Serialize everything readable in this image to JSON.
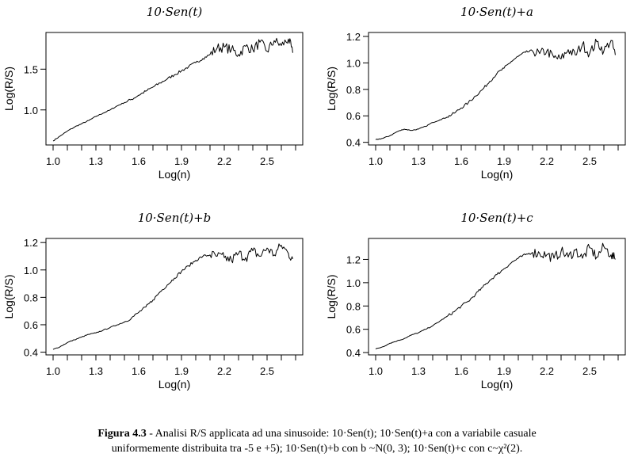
{
  "chart_data": [
    {
      "type": "line",
      "title": "10·Sen(t)",
      "xlabel": "Log(n)",
      "ylabel": "Log(R/S)",
      "xlim": [
        0.95,
        2.75
      ],
      "ylim": [
        0.57,
        1.95
      ],
      "xticks": [
        1.0,
        1.1,
        1.2,
        1.3,
        1.4,
        1.5,
        1.6,
        1.7,
        1.8,
        1.9,
        2.0,
        2.1,
        2.2,
        2.3,
        2.4,
        2.5,
        2.6,
        2.7
      ],
      "xticklabels": [
        "1.0",
        "1.3",
        "1.6",
        "1.9",
        "2.2",
        "2.5"
      ],
      "yticks": [
        1.0,
        1.5
      ],
      "yticklabels": [
        "1.0",
        "1.5"
      ],
      "x": [
        1.0,
        1.05,
        1.1,
        1.15,
        1.2,
        1.25,
        1.3,
        1.35,
        1.4,
        1.45,
        1.5,
        1.55,
        1.6,
        1.65,
        1.7,
        1.75,
        1.8,
        1.85,
        1.9,
        1.95,
        2.0,
        2.05,
        2.1,
        2.15,
        2.2,
        2.25,
        2.3,
        2.35,
        2.4,
        2.45,
        2.5,
        2.55,
        2.6,
        2.65,
        2.68
      ],
      "y": [
        0.62,
        0.68,
        0.74,
        0.79,
        0.83,
        0.87,
        0.92,
        0.96,
        1.0,
        1.05,
        1.09,
        1.13,
        1.18,
        1.23,
        1.28,
        1.33,
        1.38,
        1.43,
        1.48,
        1.53,
        1.58,
        1.63,
        1.68,
        1.76,
        1.77,
        1.74,
        1.68,
        1.78,
        1.74,
        1.83,
        1.72,
        1.85,
        1.79,
        1.87,
        1.7
      ]
    },
    {
      "type": "line",
      "title": "10·Sen(t)+a",
      "xlabel": "Log(n)",
      "ylabel": "Log(R/S)",
      "xlim": [
        0.95,
        2.75
      ],
      "ylim": [
        0.38,
        1.23
      ],
      "xticks": [
        1.0,
        1.1,
        1.2,
        1.3,
        1.4,
        1.5,
        1.6,
        1.7,
        1.8,
        1.9,
        2.0,
        2.1,
        2.2,
        2.3,
        2.4,
        2.5,
        2.6,
        2.7
      ],
      "xticklabels": [
        "1.0",
        "1.3",
        "1.6",
        "1.9",
        "2.2",
        "2.5"
      ],
      "yticks": [
        0.4,
        0.6,
        0.8,
        1.0,
        1.2
      ],
      "yticklabels": [
        "0.4",
        "0.6",
        "0.8",
        "1.0",
        "1.2"
      ],
      "x": [
        1.0,
        1.05,
        1.1,
        1.15,
        1.2,
        1.25,
        1.3,
        1.35,
        1.4,
        1.45,
        1.5,
        1.55,
        1.6,
        1.65,
        1.7,
        1.75,
        1.8,
        1.85,
        1.9,
        1.95,
        2.0,
        2.05,
        2.1,
        2.15,
        2.2,
        2.25,
        2.3,
        2.35,
        2.4,
        2.45,
        2.5,
        2.55,
        2.6,
        2.65,
        2.68
      ],
      "y": [
        0.42,
        0.43,
        0.45,
        0.48,
        0.5,
        0.49,
        0.5,
        0.52,
        0.55,
        0.57,
        0.59,
        0.62,
        0.66,
        0.7,
        0.75,
        0.8,
        0.86,
        0.92,
        0.96,
        1.01,
        1.05,
        1.08,
        1.09,
        1.07,
        1.09,
        1.04,
        1.03,
        1.1,
        1.06,
        1.14,
        1.07,
        1.16,
        1.09,
        1.17,
        1.06
      ]
    },
    {
      "type": "line",
      "title": "10·Sen(t)+b",
      "xlabel": "Log(n)",
      "ylabel": "Log(R/S)",
      "xlim": [
        0.95,
        2.75
      ],
      "ylim": [
        0.38,
        1.23
      ],
      "xticks": [
        1.0,
        1.1,
        1.2,
        1.3,
        1.4,
        1.5,
        1.6,
        1.7,
        1.8,
        1.9,
        2.0,
        2.1,
        2.2,
        2.3,
        2.4,
        2.5,
        2.6,
        2.7
      ],
      "xticklabels": [
        "1.0",
        "1.3",
        "1.6",
        "1.9",
        "2.2",
        "2.5"
      ],
      "yticks": [
        0.4,
        0.6,
        0.8,
        1.0,
        1.2
      ],
      "yticklabels": [
        "0.4",
        "0.6",
        "0.8",
        "1.0",
        "1.2"
      ],
      "x": [
        1.0,
        1.05,
        1.1,
        1.15,
        1.2,
        1.25,
        1.3,
        1.35,
        1.4,
        1.45,
        1.5,
        1.55,
        1.6,
        1.65,
        1.7,
        1.75,
        1.8,
        1.85,
        1.9,
        1.95,
        2.0,
        2.05,
        2.1,
        2.15,
        2.2,
        2.25,
        2.3,
        2.35,
        2.4,
        2.45,
        2.5,
        2.55,
        2.6,
        2.65,
        2.68
      ],
      "y": [
        0.42,
        0.44,
        0.47,
        0.49,
        0.51,
        0.53,
        0.54,
        0.56,
        0.58,
        0.6,
        0.62,
        0.65,
        0.69,
        0.73,
        0.78,
        0.84,
        0.89,
        0.94,
        0.99,
        1.03,
        1.07,
        1.1,
        1.11,
        1.1,
        1.09,
        1.07,
        1.12,
        1.09,
        1.14,
        1.1,
        1.16,
        1.11,
        1.18,
        1.12,
        1.08
      ]
    },
    {
      "type": "line",
      "title": "10·Sen(t)+c",
      "xlabel": "Log(n)",
      "ylabel": "Log(R/S)",
      "xlim": [
        0.95,
        2.75
      ],
      "ylim": [
        0.38,
        1.38
      ],
      "xticks": [
        1.0,
        1.1,
        1.2,
        1.3,
        1.4,
        1.5,
        1.6,
        1.7,
        1.8,
        1.9,
        2.0,
        2.1,
        2.2,
        2.3,
        2.4,
        2.5,
        2.6,
        2.7
      ],
      "xticklabels": [
        "1.0",
        "1.3",
        "1.6",
        "1.9",
        "2.2",
        "2.5"
      ],
      "yticks": [
        0.4,
        0.6,
        0.8,
        1.0,
        1.2
      ],
      "yticklabels": [
        "0.4",
        "0.6",
        "0.8",
        "1.0",
        "1.2"
      ],
      "x": [
        1.0,
        1.05,
        1.1,
        1.15,
        1.2,
        1.25,
        1.3,
        1.35,
        1.4,
        1.45,
        1.5,
        1.55,
        1.6,
        1.65,
        1.7,
        1.75,
        1.8,
        1.85,
        1.9,
        1.95,
        2.0,
        2.05,
        2.1,
        2.15,
        2.2,
        2.25,
        2.3,
        2.35,
        2.4,
        2.45,
        2.5,
        2.55,
        2.6,
        2.65,
        2.68
      ],
      "y": [
        0.43,
        0.45,
        0.48,
        0.5,
        0.52,
        0.55,
        0.57,
        0.6,
        0.63,
        0.67,
        0.71,
        0.75,
        0.8,
        0.84,
        0.9,
        0.96,
        1.02,
        1.07,
        1.12,
        1.17,
        1.21,
        1.24,
        1.26,
        1.25,
        1.24,
        1.21,
        1.27,
        1.22,
        1.28,
        1.21,
        1.3,
        1.22,
        1.31,
        1.24,
        1.2
      ]
    }
  ],
  "caption": {
    "label": "Figura 4.3",
    "line1": " - Analisi R/S applicata ad una sinusoide: 10·Sen(t); 10·Sen(t)+a con a variabile casuale",
    "line2": "uniformemente distribuita tra -5 e +5); 10·Sen(t)+b con b ~N(0, 3); 10·Sen(t)+c con c~χ²(2)."
  }
}
